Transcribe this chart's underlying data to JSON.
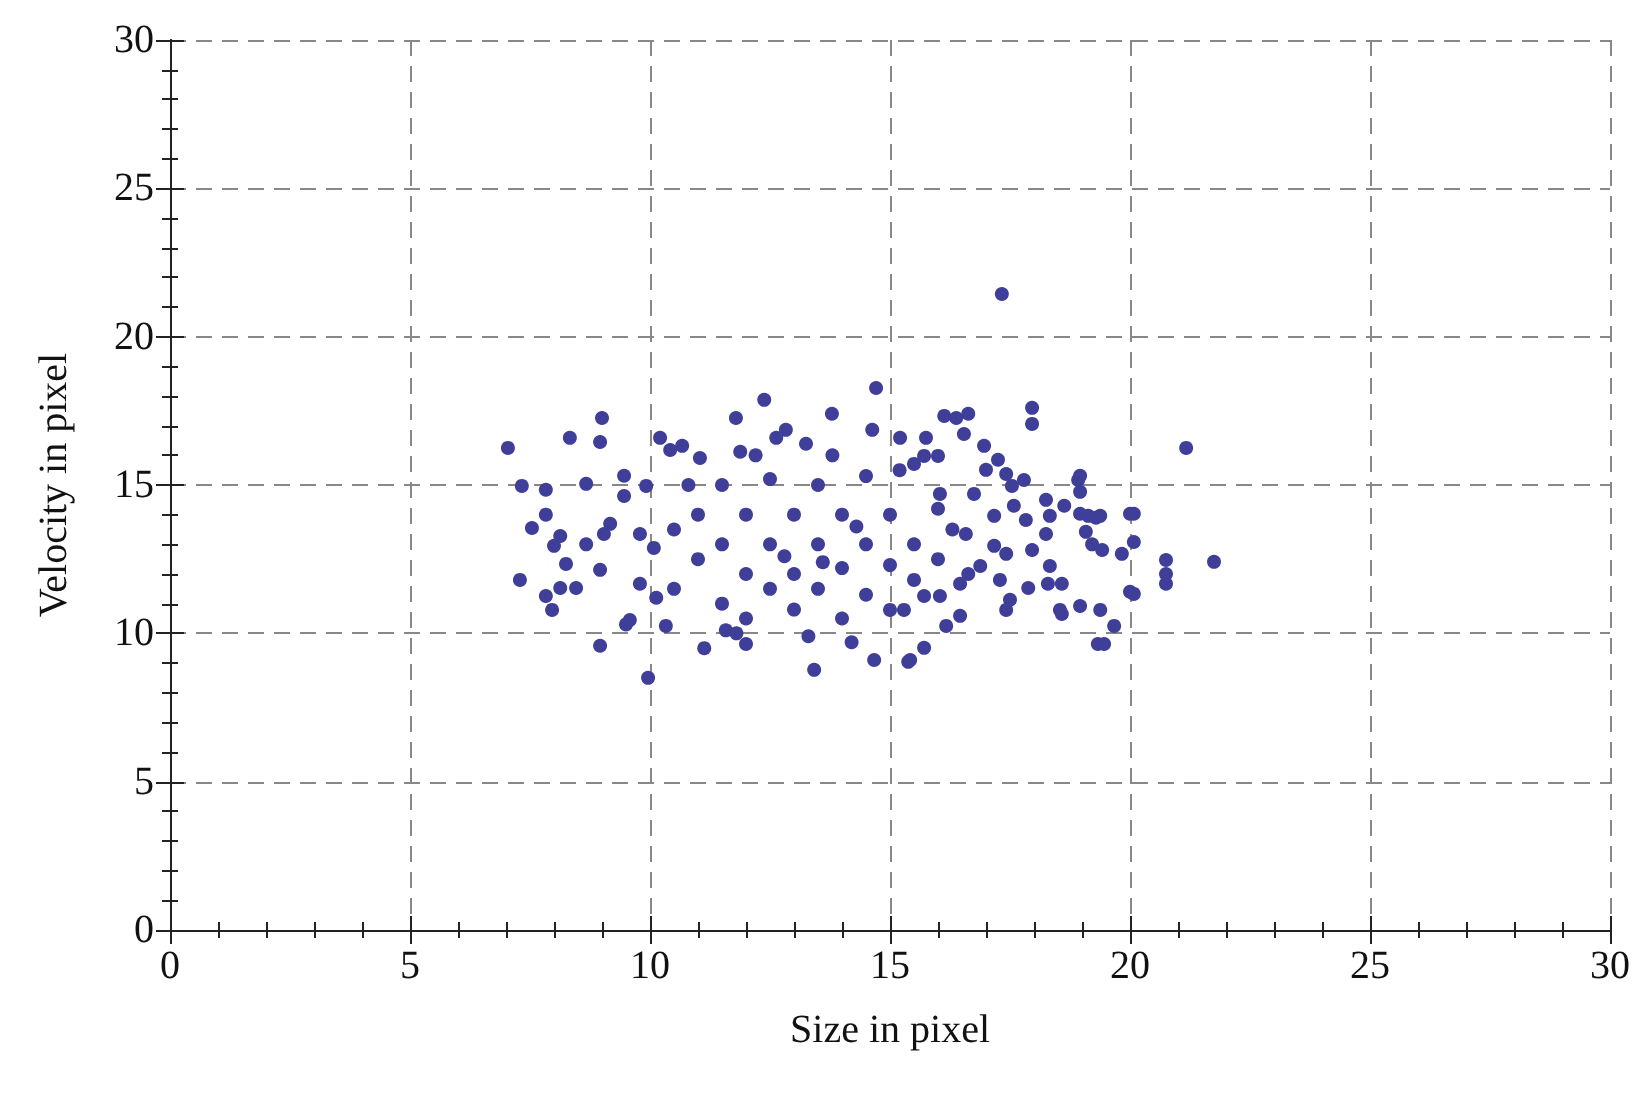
{
  "chart_data": {
    "type": "scatter",
    "xlabel": "Size in pixel",
    "ylabel": "Velocity in pixel",
    "xlim": [
      0,
      30
    ],
    "ylim": [
      0,
      30
    ],
    "xticks": [
      0,
      5,
      10,
      15,
      20,
      25,
      30
    ],
    "yticks": [
      0,
      5,
      10,
      15,
      20,
      25,
      30
    ],
    "grid": true,
    "marker": "circle",
    "series": [
      {
        "color": "#3f3f99",
        "x": [
          17.33,
          14.71,
          12.38,
          9.0,
          7.04,
          21.17,
          21.75,
          17.96,
          17.96,
          16.13,
          16.63,
          10.21,
          8.96,
          8.33,
          7.33,
          7.29,
          8.13,
          7.96,
          8.96,
          9.96,
          13.42,
          14.67,
          15.42,
          15.71,
          19.33,
          19.67,
          19.38,
          20.0,
          20.75,
          20.75,
          20.75,
          20.08,
          20.0,
          18.92,
          18.96,
          18.33,
          19.13,
          19.29,
          19.21,
          18.96,
          18.54,
          18.29,
          17.29,
          17.5,
          16.63,
          11.13,
          12.0,
          11.58,
          9.58,
          7.83,
          11.79,
          13.79,
          7.83,
          7.54,
          8.13,
          8.0,
          7.83,
          8.46,
          8.25,
          8.67,
          9.04,
          9.17,
          8.96,
          9.5,
          9.79,
          10.08,
          10.13,
          10.33,
          9.79,
          9.46,
          8.67,
          9.46,
          9.92,
          10.42,
          10.67,
          11.04,
          11.88,
          12.63,
          12.83,
          13.25,
          14.63,
          15.21,
          15.75,
          16.38,
          16.54,
          16.96,
          17.25,
          17.0,
          17.42,
          17.79,
          17.54,
          18.25,
          18.63,
          18.96,
          18.96,
          19.38,
          19.08,
          19.42,
          19.83,
          20.08,
          20.08,
          19.46,
          18.58,
          18.58,
          17.88,
          18.33,
          17.96,
          18.25,
          17.83,
          17.42,
          17.42,
          16.46,
          16.17,
          15.38,
          15.0,
          15.29,
          16.04,
          15.71,
          16.46,
          16.88,
          17.17,
          16.58,
          17.17,
          17.58,
          16.75,
          16.04,
          15.71,
          15.5,
          16.0,
          11.0,
          11.0,
          11.5,
          11.5,
          11.5,
          12.0,
          12.0,
          12.0,
          12.5,
          12.5,
          12.5,
          13.0,
          13.0,
          13.0,
          13.5,
          13.5,
          13.5,
          14.0,
          14.0,
          14.0,
          14.5,
          14.5,
          14.5,
          15.0,
          15.0,
          15.5,
          15.5,
          16.0,
          16.0,
          10.5,
          10.5,
          12.2,
          13.8,
          15.2,
          11.8,
          13.3,
          14.2,
          10.8,
          16.3,
          12.8,
          13.6,
          14.3
        ],
        "values": [
          21.44,
          18.27,
          17.87,
          17.26,
          16.25,
          16.25,
          12.41,
          17.6,
          17.06,
          17.33,
          17.4,
          16.59,
          16.45,
          16.59,
          14.97,
          11.8,
          11.53,
          10.79,
          9.58,
          8.5,
          8.77,
          9.1,
          9.1,
          9.51,
          9.64,
          10.25,
          10.79,
          11.4,
          11.67,
          12.0,
          12.47,
          13.08,
          14.03,
          15.17,
          14.77,
          13.96,
          13.96,
          13.9,
          13.0,
          10.92,
          10.79,
          11.67,
          11.8,
          11.13,
          12.0,
          9.5,
          9.64,
          10.1,
          10.45,
          14.84,
          17.26,
          17.4,
          14.0,
          13.55,
          13.28,
          12.95,
          11.26,
          11.53,
          12.34,
          13.0,
          13.35,
          13.69,
          12.14,
          10.3,
          11.67,
          12.88,
          11.2,
          10.25,
          13.35,
          15.31,
          15.04,
          14.63,
          14.97,
          16.18,
          16.32,
          15.91,
          16.12,
          16.59,
          16.86,
          16.39,
          16.86,
          16.59,
          16.59,
          17.26,
          16.72,
          16.32,
          15.85,
          15.51,
          15.37,
          15.17,
          14.97,
          14.5,
          14.3,
          15.31,
          14.03,
          13.96,
          13.42,
          12.81,
          12.68,
          14.03,
          11.33,
          9.64,
          10.65,
          11.67,
          11.53,
          12.27,
          12.81,
          13.35,
          13.82,
          12.68,
          10.79,
          10.59,
          10.25,
          9.04,
          10.79,
          10.79,
          11.26,
          11.26,
          11.67,
          12.27,
          12.95,
          13.35,
          13.96,
          14.3,
          14.7,
          14.7,
          15.98,
          15.71,
          15.98,
          12.5,
          14.0,
          11.0,
          13.0,
          15.0,
          12.0,
          14.0,
          10.5,
          13.0,
          15.2,
          11.5,
          12.0,
          14.0,
          10.8,
          13.0,
          15.0,
          11.5,
          12.2,
          14.0,
          10.5,
          13.0,
          15.3,
          11.3,
          12.3,
          14.0,
          13.0,
          11.8,
          14.2,
          12.5,
          13.5,
          11.5,
          16.0,
          16.0,
          15.5,
          10.0,
          9.9,
          9.7,
          15.0,
          13.5,
          12.6,
          12.4,
          13.6
        ]
      }
    ]
  }
}
